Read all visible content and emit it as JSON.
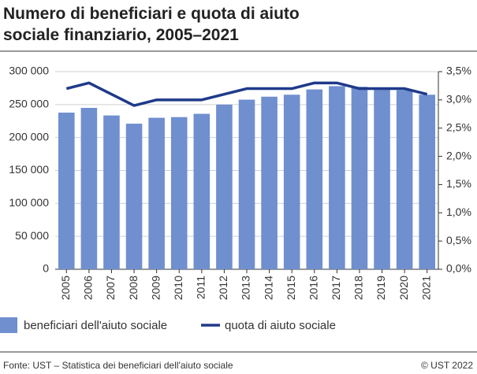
{
  "chart_data": {
    "type": "bar-line",
    "title": "Numero di beneficiari e quota di aiuto sociale finanziario, 2005–2021",
    "categories": [
      "2005",
      "2006",
      "2007",
      "2008",
      "2009",
      "2010",
      "2011",
      "2012",
      "2013",
      "2014",
      "2015",
      "2016",
      "2017",
      "2018",
      "2019",
      "2020",
      "2021"
    ],
    "series": [
      {
        "name": "beneficiari dell'aiuto sociale",
        "type": "bar",
        "color": "#6f8fcf",
        "axis": "y",
        "values": [
          237800,
          245000,
          233500,
          221000,
          230000,
          231000,
          236000,
          250000,
          257500,
          262000,
          265000,
          273000,
          278000,
          277000,
          273000,
          272000,
          265000
        ]
      },
      {
        "name": "quota di aiuto sociale",
        "type": "line",
        "color": "#1f3a8a",
        "axis": "y2",
        "values": [
          3.2,
          3.3,
          3.1,
          2.9,
          3.0,
          3.0,
          3.0,
          3.1,
          3.2,
          3.2,
          3.2,
          3.3,
          3.3,
          3.2,
          3.2,
          3.2,
          3.1
        ]
      }
    ],
    "ylim": [
      0,
      300000
    ],
    "yticks": [
      {
        "value": 0,
        "label": "0"
      },
      {
        "value": 50000,
        "label": "50 000"
      },
      {
        "value": 100000,
        "label": "100 000"
      },
      {
        "value": 150000,
        "label": "150 000"
      },
      {
        "value": 200000,
        "label": "200 000"
      },
      {
        "value": 250000,
        "label": "250 000"
      },
      {
        "value": 300000,
        "label": "300 000"
      }
    ],
    "y2lim": [
      0,
      3.5
    ],
    "y2ticks": [
      {
        "value": 0,
        "label": "0,0%"
      },
      {
        "value": 0.5,
        "label": "0,5%"
      },
      {
        "value": 1,
        "label": "1,0%"
      },
      {
        "value": 1.5,
        "label": "1,5%"
      },
      {
        "value": 2,
        "label": "2,0%"
      },
      {
        "value": 2.5,
        "label": "2,5%"
      },
      {
        "value": 3,
        "label": "3,0%"
      },
      {
        "value": 3.5,
        "label": "3,5%"
      }
    ],
    "grid": true,
    "source": "Fonte: UST – Statistica dei beneficiari dell'aiuto sociale",
    "copyright": "© UST 2022"
  }
}
